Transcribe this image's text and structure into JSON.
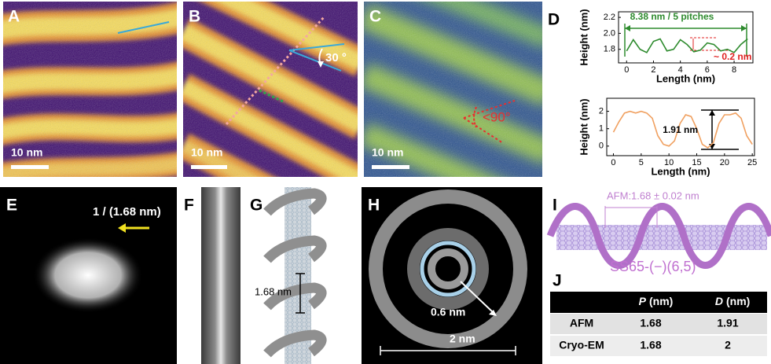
{
  "panels": {
    "A": {
      "label": "A",
      "scale_bar": "10 nm"
    },
    "B": {
      "label": "B",
      "scale_bar": "10 nm",
      "angle": "30 °"
    },
    "C": {
      "label": "C",
      "scale_bar": "10 nm",
      "angle": "<90°"
    },
    "D": {
      "label": "D"
    },
    "E": {
      "label": "E",
      "annotation": "1 / (1.68 nm)"
    },
    "F": {
      "label": "F"
    },
    "G": {
      "label": "G",
      "pitch": "1.68 nm"
    },
    "H": {
      "label": "H",
      "radius": "0.6 nm",
      "diameter": "2 nm"
    },
    "I": {
      "label": "I",
      "afm": "AFM:1.68 ± 0.02 nm",
      "name": "SS65-(−)(6,5)"
    },
    "J": {
      "label": "J"
    }
  },
  "chart_data": [
    {
      "type": "line",
      "xlabel": "Length (nm)",
      "ylabel": "Height (nm)",
      "x": [
        0,
        0.5,
        1,
        1.5,
        2,
        2.5,
        3,
        3.5,
        4,
        4.5,
        5,
        5.5,
        6,
        6.5,
        7,
        7.5,
        8,
        8.5,
        9
      ],
      "values": [
        1.78,
        1.92,
        1.8,
        1.76,
        1.9,
        1.93,
        1.78,
        1.8,
        1.92,
        1.86,
        1.77,
        1.79,
        1.88,
        1.86,
        1.78,
        1.8,
        1.76,
        1.86,
        1.93
      ],
      "color": "#2e8b2e",
      "xlim": [
        -0.6,
        9.4
      ],
      "ylim": [
        1.63,
        2.27
      ],
      "xticks": [
        0,
        2,
        4,
        6,
        8
      ],
      "yticks": [
        1.8,
        {
          "value": 2,
          "label": "2.0"
        },
        2.2
      ],
      "annotations": [
        "8.38 nm / 5 pitches",
        "~ 0.2 nm"
      ]
    },
    {
      "type": "line",
      "xlabel": "Length (nm)",
      "ylabel": "Height (nm)",
      "x": [
        0,
        1,
        2,
        3,
        4,
        5,
        6,
        7,
        8,
        9,
        10,
        11,
        12,
        13,
        14,
        15,
        16,
        17,
        18,
        19,
        20,
        21,
        22,
        23,
        24,
        25
      ],
      "values": [
        0.8,
        1.4,
        1.9,
        2.0,
        1.9,
        2.0,
        1.9,
        1.6,
        0.6,
        0.1,
        0.0,
        0.3,
        1.3,
        1.8,
        1.7,
        1.0,
        0.1,
        -0.1,
        0.2,
        1.3,
        1.8,
        1.8,
        1.9,
        1.6,
        0.6,
        0.1
      ],
      "color": "#f0a060",
      "xlim": [
        -1.2,
        25.4
      ],
      "ylim": [
        -0.55,
        2.75
      ],
      "xticks": [
        0,
        5,
        10,
        15,
        20,
        25
      ],
      "yticks": [
        0,
        1,
        2
      ],
      "annotations": [
        "1.91 nm"
      ]
    }
  ],
  "table": {
    "header": [
      {
        "symbol": "P",
        "unit": "(nm)"
      },
      {
        "symbol": "D",
        "unit": "(nm)"
      }
    ],
    "rows": [
      [
        "AFM",
        1.68,
        1.91
      ],
      [
        "Cryo-EM",
        1.68,
        2
      ]
    ]
  }
}
